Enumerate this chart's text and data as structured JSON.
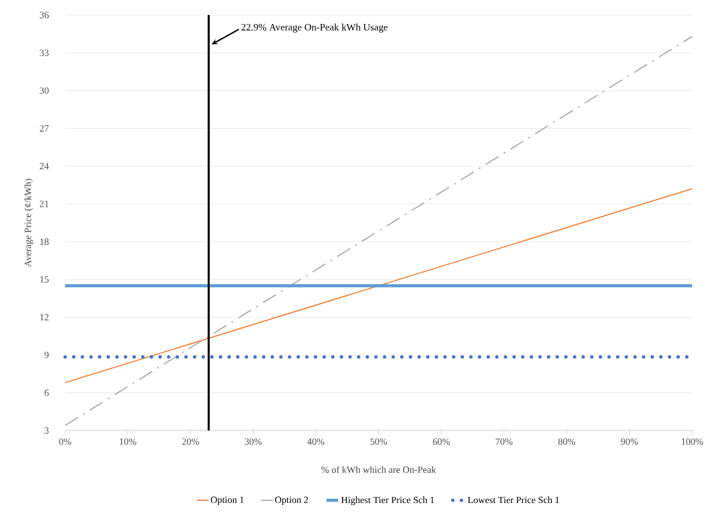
{
  "chart_data": {
    "type": "line",
    "xlabel": "%  of kWh which are On-Peak",
    "ylabel": "Average Price (¢/kWh)",
    "x": [
      0,
      100
    ],
    "xlim": [
      0,
      100
    ],
    "xticks": [
      {
        "value": 0,
        "label": "0%"
      },
      {
        "value": 10,
        "label": "10%"
      },
      {
        "value": 20,
        "label": "20%"
      },
      {
        "value": 30,
        "label": "30%"
      },
      {
        "value": 40,
        "label": "40%"
      },
      {
        "value": 50,
        "label": "50%"
      },
      {
        "value": 60,
        "label": "60%"
      },
      {
        "value": 70,
        "label": "70%"
      },
      {
        "value": 80,
        "label": "80%"
      },
      {
        "value": 90,
        "label": "90%"
      },
      {
        "value": 100,
        "label": "100%"
      }
    ],
    "ylim": [
      3,
      36
    ],
    "yticks": [
      3,
      6,
      9,
      12,
      15,
      18,
      21,
      24,
      27,
      30,
      33,
      36
    ],
    "series": [
      {
        "name": "Option 1",
        "color": "#ed7d31",
        "values": [
          6.8,
          22.2
        ],
        "line_style": "solid"
      },
      {
        "name": "Option 2",
        "color": "#a5a5a5",
        "values": [
          3.4,
          34.3
        ],
        "line_style": "dashed"
      },
      {
        "name": "Highest Tier Price Sch 1",
        "color": "#5b9bd5",
        "values": [
          14.5,
          14.5
        ],
        "line_style": "solid"
      },
      {
        "name": "Lowest Tier Price Sch 1",
        "color": "#4472c4",
        "values": [
          8.85,
          8.85
        ],
        "line_style": "dotted"
      }
    ],
    "ref_lines": [
      {
        "axis": "x",
        "value": 22.9,
        "label": "22.9% Average On-Peak kWh Usage",
        "color": "#000000"
      }
    ],
    "grid": "y",
    "legend": "bottom",
    "marker": "none"
  }
}
